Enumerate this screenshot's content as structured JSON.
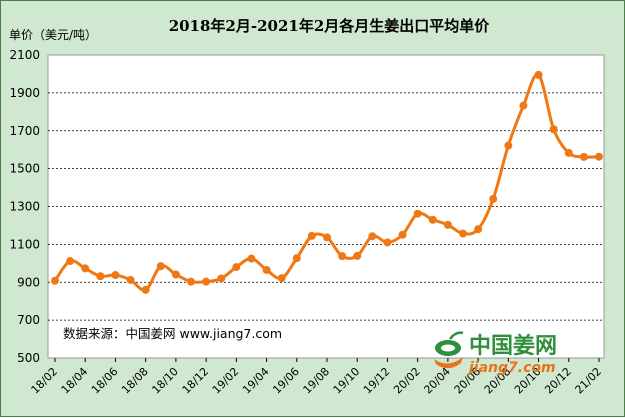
{
  "chart_data": {
    "type": "line",
    "title": "2018年2月-2021年2月各月生姜出口平均单价",
    "ylabel": "单价（美元/吨）",
    "xlabel": "",
    "ylim": [
      500,
      2100
    ],
    "yticks": [
      500,
      700,
      900,
      1100,
      1300,
      1500,
      1700,
      1900,
      2100
    ],
    "xticklabels": [
      "18/02",
      "18/04",
      "18/06",
      "18/08",
      "18/10",
      "18/12",
      "19/02",
      "19/04",
      "19/06",
      "19/08",
      "19/10",
      "19/12",
      "20/02",
      "20/04",
      "20/06",
      "20/08",
      "20/10",
      "20/12",
      "21/02"
    ],
    "grid": "horizontal-dashed",
    "series": [
      {
        "color": "#f07814",
        "values": [
          908,
          1012,
          973,
          932,
          938,
          912,
          860,
          985,
          941,
          903,
          903,
          920,
          980,
          1025,
          965,
          922,
          1027,
          1145,
          1137,
          1038,
          1039,
          1143,
          1110,
          1151,
          1262,
          1230,
          1203,
          1157,
          1180,
          1340,
          1622,
          1833,
          1995,
          1708,
          1583,
          1562,
          1563
        ]
      }
    ]
  },
  "annotation": {
    "source": "数据来源：中国姜网 www.jiang7.com"
  },
  "logo": {
    "name_cn": "中国姜网",
    "domain": "jiang7.com"
  },
  "colors": {
    "plot_background": "#ffffff",
    "frame_background": "#cfe8cf",
    "line": "#f07814",
    "logo_green": "#2f8f3a",
    "logo_orange": "#e8731a"
  }
}
